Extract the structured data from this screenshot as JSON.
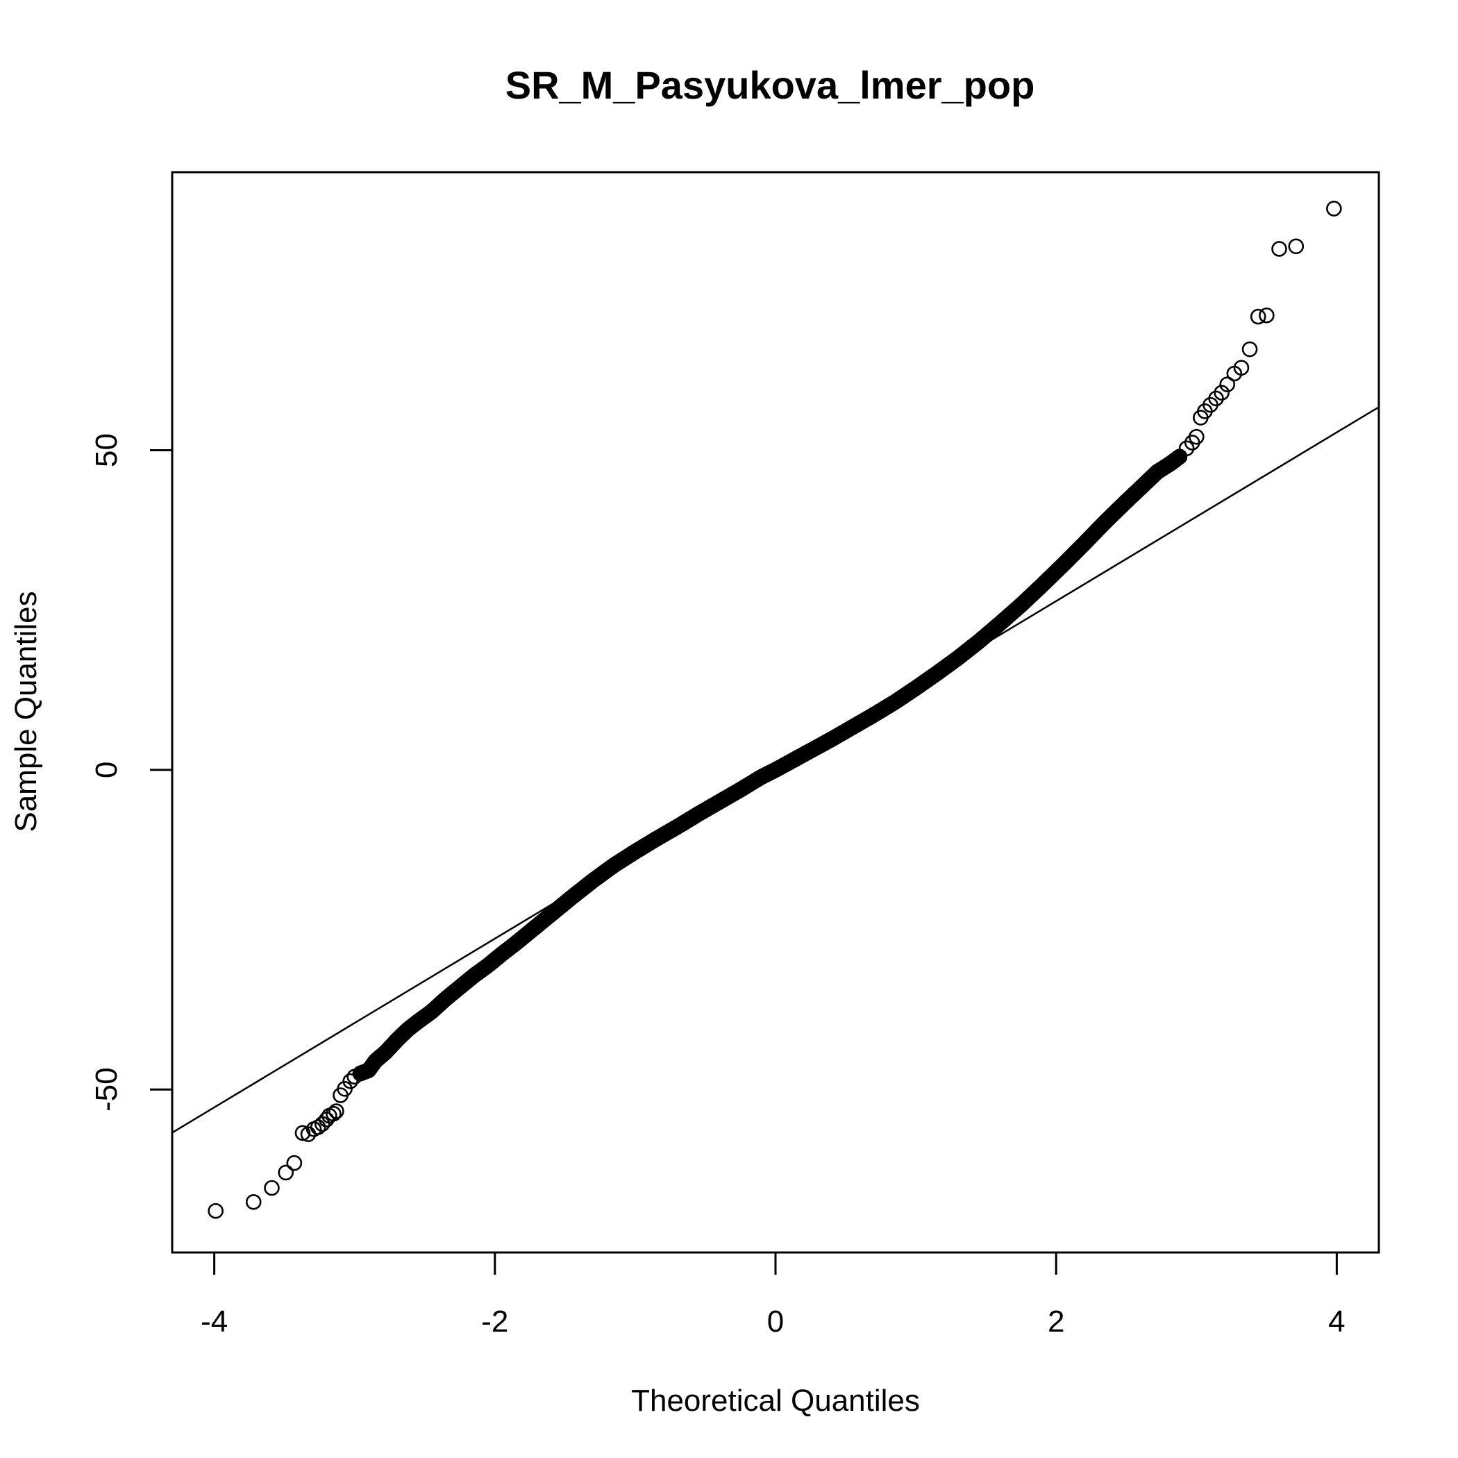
{
  "chart_data": {
    "type": "scatter",
    "title": "SR_M_Pasyukova_lmer_pop",
    "xlabel": "Theoretical Quantiles",
    "ylabel": "Sample Quantiles",
    "xlim": [
      -4.3,
      4.3
    ],
    "ylim": [
      -75.5,
      93.5
    ],
    "x_ticks": [
      -4,
      -2,
      0,
      2,
      4
    ],
    "x_tick_labels": [
      "-4",
      "-2",
      "0",
      "2",
      "4"
    ],
    "y_ticks": [
      -50,
      0,
      50
    ],
    "y_tick_labels": [
      "-50",
      "0",
      "50"
    ],
    "grid": false,
    "legend": "none",
    "marker": "open-circle",
    "reference_line": {
      "slope": 13.2,
      "intercept": 0
    },
    "series": [
      {
        "name": "",
        "points": [
          [
            -3.99,
            -69.0
          ],
          [
            -3.72,
            -67.6
          ],
          [
            -3.59,
            -65.4
          ],
          [
            -3.49,
            -63.0
          ],
          [
            -3.43,
            -61.5
          ],
          [
            -3.37,
            -56.8
          ],
          [
            -3.33,
            -57.0
          ],
          [
            -3.29,
            -56.2
          ],
          [
            -3.26,
            -55.9
          ],
          [
            -3.23,
            -55.4
          ],
          [
            -3.2,
            -54.7
          ],
          [
            -3.18,
            -54.1
          ],
          [
            -3.15,
            -53.8
          ],
          [
            -3.13,
            -53.4
          ],
          [
            -3.1,
            -50.9
          ],
          [
            -3.07,
            -49.9
          ],
          [
            -3.03,
            -48.7
          ],
          [
            -3.0,
            -48.0
          ],
          [
            -2.96,
            -47.5
          ],
          [
            -2.9,
            -47.0
          ],
          [
            -2.85,
            -45.5
          ],
          [
            -2.78,
            -44.2
          ],
          [
            -2.7,
            -42.3
          ],
          [
            -2.62,
            -40.6
          ],
          [
            -2.55,
            -39.4
          ],
          [
            -2.45,
            -37.8
          ],
          [
            -2.35,
            -35.8
          ],
          [
            -2.25,
            -34.0
          ],
          [
            -2.15,
            -32.2
          ],
          [
            -2.05,
            -30.6
          ],
          [
            -1.95,
            -28.8
          ],
          [
            -1.85,
            -27.1
          ],
          [
            -1.75,
            -25.3
          ],
          [
            -1.6,
            -22.6
          ],
          [
            -1.45,
            -19.9
          ],
          [
            -1.3,
            -17.3
          ],
          [
            -1.15,
            -14.9
          ],
          [
            -1.0,
            -12.8
          ],
          [
            -0.85,
            -10.8
          ],
          [
            -0.7,
            -8.9
          ],
          [
            -0.55,
            -6.9
          ],
          [
            -0.4,
            -5.0
          ],
          [
            -0.25,
            -3.1
          ],
          [
            -0.1,
            -1.1
          ],
          [
            0.0,
            0.0
          ],
          [
            0.1,
            1.2
          ],
          [
            0.25,
            3.0
          ],
          [
            0.4,
            4.8
          ],
          [
            0.55,
            6.7
          ],
          [
            0.7,
            8.6
          ],
          [
            0.85,
            10.6
          ],
          [
            1.0,
            12.8
          ],
          [
            1.15,
            15.1
          ],
          [
            1.3,
            17.5
          ],
          [
            1.45,
            20.1
          ],
          [
            1.6,
            22.9
          ],
          [
            1.75,
            25.8
          ],
          [
            1.9,
            28.9
          ],
          [
            2.05,
            32.1
          ],
          [
            2.2,
            35.4
          ],
          [
            2.35,
            38.8
          ],
          [
            2.5,
            42.0
          ],
          [
            2.62,
            44.5
          ],
          [
            2.72,
            46.6
          ],
          [
            2.82,
            48.0
          ],
          [
            2.88,
            49.0
          ],
          [
            2.93,
            50.3
          ],
          [
            2.97,
            51.2
          ],
          [
            3.0,
            52.1
          ],
          [
            3.03,
            55.1
          ],
          [
            3.06,
            56.1
          ],
          [
            3.1,
            57.1
          ],
          [
            3.14,
            58.1
          ],
          [
            3.18,
            59.0
          ],
          [
            3.22,
            60.3
          ],
          [
            3.27,
            62.0
          ],
          [
            3.32,
            62.9
          ],
          [
            3.38,
            65.8
          ],
          [
            3.44,
            70.9
          ],
          [
            3.5,
            71.1
          ],
          [
            3.59,
            81.5
          ],
          [
            3.71,
            81.9
          ],
          [
            3.98,
            87.8
          ]
        ]
      }
    ]
  }
}
